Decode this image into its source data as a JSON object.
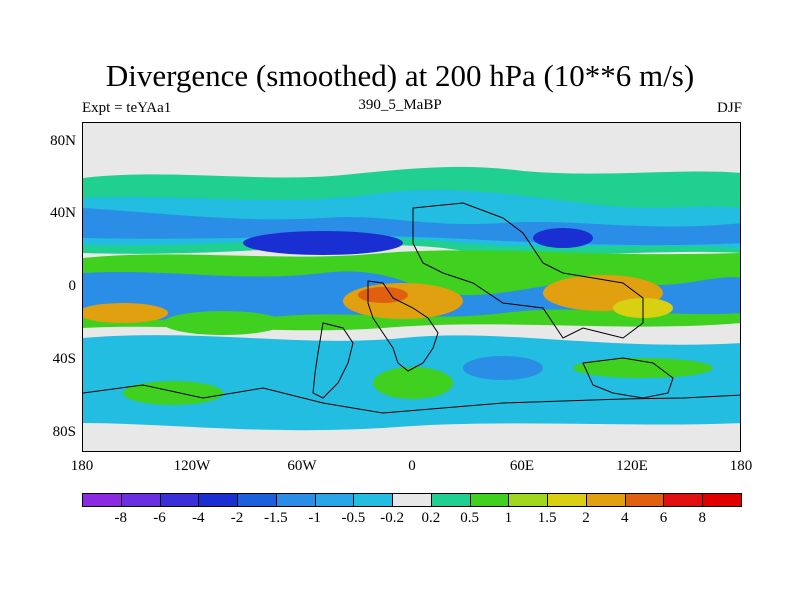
{
  "title": "Divergence (smoothed) at 200 hPa (10**6 m/s)",
  "subtitle_left": "Expt = teYAa1",
  "subtitle_center": "390_5_MaBP",
  "subtitle_right": "DJF",
  "y_ticks": [
    "80N",
    "40N",
    "0",
    "40S",
    "80S"
  ],
  "y_tick_values": [
    80,
    40,
    0,
    -40,
    -80
  ],
  "x_ticks": [
    "180",
    "120W",
    "60W",
    "0",
    "60E",
    "120E",
    "180"
  ],
  "x_tick_values": [
    -180,
    -120,
    -60,
    0,
    60,
    120,
    180
  ],
  "colorbar": {
    "labels": [
      "-8",
      "-6",
      "-4",
      "-2",
      "-1.5",
      "-1",
      "-0.5",
      "-0.2",
      "0.2",
      "0.5",
      "1",
      "1.5",
      "2",
      "4",
      "6",
      "8"
    ],
    "colors": [
      "#8a2be2",
      "#6a2fe0",
      "#3a2fd8",
      "#1a2fd2",
      "#1e5fdc",
      "#2a8ee6",
      "#2aa6e8",
      "#22bde0",
      "#e8e8e8",
      "#20d090",
      "#40d020",
      "#a0d820",
      "#d8d010",
      "#e0a010",
      "#e06010",
      "#e01010",
      "#e00000"
    ]
  },
  "colors": {
    "neutral": "#e8e8e8",
    "strong_neg": "#1a2fd2",
    "neg": "#2a8ee6",
    "weak_neg": "#22bde0",
    "weak_pos": "#20d090",
    "pos": "#40d020",
    "mid_pos": "#d8d010",
    "strong_pos": "#e0a010",
    "very_strong_pos": "#e06010"
  }
}
